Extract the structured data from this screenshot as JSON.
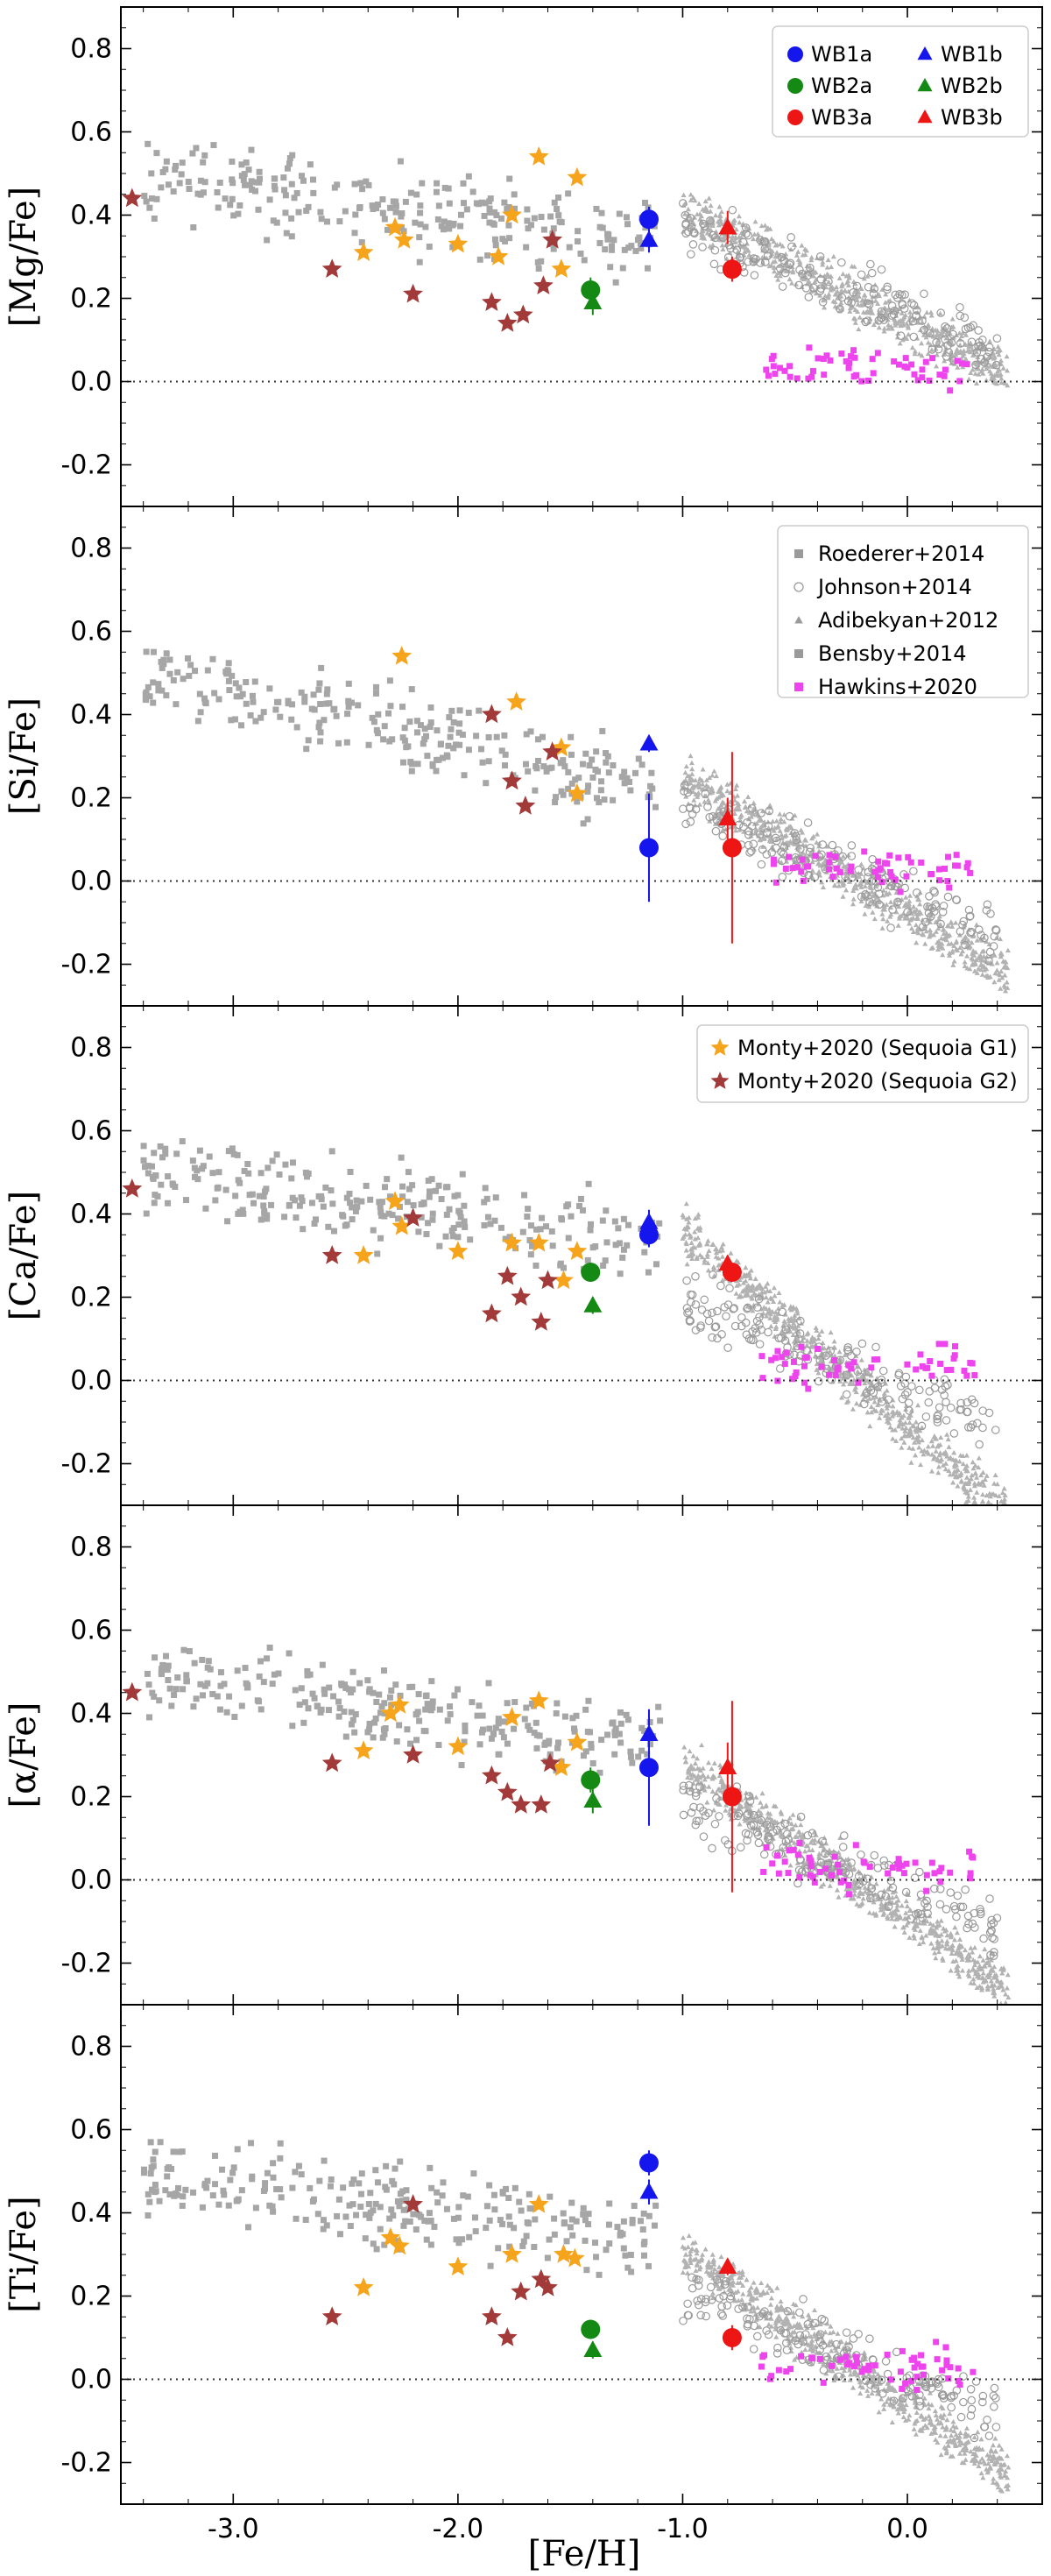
{
  "chart_data": {
    "type": "scatter",
    "xlabel": "[Fe/H]",
    "xlim": [
      -3.5,
      0.6
    ],
    "x_ticks": [
      "-3.0",
      "-2.0",
      "-1.0",
      "0.0"
    ],
    "x_tick_values": [
      -3.0,
      -2.0,
      -1.0,
      0.0
    ],
    "y_ticks": [
      "-0.2",
      "0.0",
      "0.2",
      "0.4",
      "0.6",
      "0.8"
    ],
    "y_tick_values": [
      -0.2,
      0.0,
      0.2,
      0.4,
      0.6,
      0.8
    ],
    "reference_line_y": 0.0,
    "legend_wb": [
      {
        "label": "WB1a",
        "marker": "circle",
        "color": "#1515ee"
      },
      {
        "label": "WB1b",
        "marker": "triangle",
        "color": "#1515ee"
      },
      {
        "label": "WB2a",
        "marker": "circle",
        "color": "#148a14"
      },
      {
        "label": "WB2b",
        "marker": "triangle",
        "color": "#148a14"
      },
      {
        "label": "WB3a",
        "marker": "circle",
        "color": "#ee1515"
      },
      {
        "label": "WB3b",
        "marker": "triangle",
        "color": "#ee1515"
      }
    ],
    "legend_lit": [
      {
        "label": "Roederer+2014",
        "marker": "square",
        "color": "#9a9a9a"
      },
      {
        "label": "Johnson+2014",
        "marker": "open-circle",
        "color": "#9a9a9a"
      },
      {
        "label": "Adibekyan+2012",
        "marker": "small-triangle",
        "color": "#9a9a9a"
      },
      {
        "label": "Bensby+2014",
        "marker": "square",
        "color": "#9a9a9a"
      },
      {
        "label": "Hawkins+2020",
        "marker": "square",
        "color": "#ee44ee"
      }
    ],
    "legend_monty": [
      {
        "label": "Monty+2020 (Sequoia G1)",
        "marker": "star",
        "color": "#f5a41c"
      },
      {
        "label": "Monty+2020 (Sequoia G2)",
        "marker": "star",
        "color": "#a33a3a"
      }
    ],
    "panels": [
      {
        "ylabel": "[Mg/Fe]",
        "ylim": [
          -0.3,
          0.9
        ],
        "legend": "wb",
        "wb": [
          {
            "name": "WB1a",
            "marker": "circle",
            "color": "#1515ee",
            "x": -1.15,
            "y": 0.39,
            "err": 0.03
          },
          {
            "name": "WB1b",
            "marker": "triangle",
            "color": "#1515ee",
            "x": -1.15,
            "y": 0.34,
            "err": 0.03
          },
          {
            "name": "WB2a",
            "marker": "circle",
            "color": "#148a14",
            "x": -1.41,
            "y": 0.22,
            "err": 0.03
          },
          {
            "name": "WB2b",
            "marker": "triangle",
            "color": "#148a14",
            "x": -1.4,
            "y": 0.19,
            "err": 0.03
          },
          {
            "name": "WB3a",
            "marker": "circle",
            "color": "#ee1515",
            "x": -0.78,
            "y": 0.27,
            "err": 0.03
          },
          {
            "name": "WB3b",
            "marker": "triangle",
            "color": "#ee1515",
            "x": -0.8,
            "y": 0.37,
            "err": 0.04
          }
        ],
        "g1": [
          [
            -2.42,
            0.31
          ],
          [
            -2.28,
            0.37
          ],
          [
            -2.24,
            0.34
          ],
          [
            -2.0,
            0.33
          ],
          [
            -1.82,
            0.3
          ],
          [
            -1.76,
            0.4
          ],
          [
            -1.64,
            0.54
          ],
          [
            -1.54,
            0.27
          ],
          [
            -1.47,
            0.49
          ]
        ],
        "g2": [
          [
            -3.45,
            0.44
          ],
          [
            -2.56,
            0.27
          ],
          [
            -2.2,
            0.21
          ],
          [
            -1.85,
            0.19
          ],
          [
            -1.78,
            0.14
          ],
          [
            -1.71,
            0.16
          ],
          [
            -1.62,
            0.23
          ],
          [
            -1.58,
            0.34
          ]
        ]
      },
      {
        "ylabel": "[Si/Fe]",
        "ylim": [
          -0.3,
          0.9
        ],
        "legend": "lit",
        "wb": [
          {
            "name": "WB1a",
            "marker": "circle",
            "color": "#1515ee",
            "x": -1.15,
            "y": 0.08,
            "err": 0.13
          },
          {
            "name": "WB1b",
            "marker": "triangle",
            "color": "#1515ee",
            "x": -1.15,
            "y": 0.33,
            "err": 0.02
          },
          {
            "name": "WB3a",
            "marker": "circle",
            "color": "#ee1515",
            "x": -0.78,
            "y": 0.08,
            "err": 0.23
          },
          {
            "name": "WB3b",
            "marker": "triangle",
            "color": "#ee1515",
            "x": -0.8,
            "y": 0.15,
            "err": 0.05
          }
        ],
        "g1": [
          [
            -2.25,
            0.54
          ],
          [
            -1.74,
            0.43
          ],
          [
            -1.54,
            0.32
          ],
          [
            -1.47,
            0.21
          ]
        ],
        "g2": [
          [
            -1.85,
            0.4
          ],
          [
            -1.76,
            0.24
          ],
          [
            -1.7,
            0.18
          ],
          [
            -1.58,
            0.31
          ]
        ]
      },
      {
        "ylabel": "[Ca/Fe]",
        "ylim": [
          -0.3,
          0.9
        ],
        "legend": "monty",
        "wb": [
          {
            "name": "WB1a",
            "marker": "circle",
            "color": "#1515ee",
            "x": -1.15,
            "y": 0.35,
            "err": 0.03
          },
          {
            "name": "WB1b",
            "marker": "triangle",
            "color": "#1515ee",
            "x": -1.15,
            "y": 0.38,
            "err": 0.03
          },
          {
            "name": "WB2a",
            "marker": "circle",
            "color": "#148a14",
            "x": -1.41,
            "y": 0.26,
            "err": 0.02
          },
          {
            "name": "WB2b",
            "marker": "triangle",
            "color": "#148a14",
            "x": -1.4,
            "y": 0.18,
            "err": 0.02
          },
          {
            "name": "WB3a",
            "marker": "circle",
            "color": "#ee1515",
            "x": -0.78,
            "y": 0.26,
            "err": 0.02
          },
          {
            "name": "WB3b",
            "marker": "triangle",
            "color": "#ee1515",
            "x": -0.8,
            "y": 0.28,
            "err": 0.02
          }
        ],
        "g1": [
          [
            -2.42,
            0.3
          ],
          [
            -2.28,
            0.43
          ],
          [
            -2.25,
            0.37
          ],
          [
            -2.0,
            0.31
          ],
          [
            -1.76,
            0.33
          ],
          [
            -1.64,
            0.33
          ],
          [
            -1.53,
            0.24
          ],
          [
            -1.47,
            0.31
          ]
        ],
        "g2": [
          [
            -3.45,
            0.46
          ],
          [
            -2.56,
            0.3
          ],
          [
            -2.2,
            0.39
          ],
          [
            -1.85,
            0.16
          ],
          [
            -1.78,
            0.25
          ],
          [
            -1.72,
            0.2
          ],
          [
            -1.63,
            0.14
          ],
          [
            -1.6,
            0.24
          ]
        ]
      },
      {
        "ylabel": "[α/Fe]",
        "ylim": [
          -0.3,
          0.9
        ],
        "legend": null,
        "wb": [
          {
            "name": "WB1a",
            "marker": "circle",
            "color": "#1515ee",
            "x": -1.15,
            "y": 0.27,
            "err": 0.14
          },
          {
            "name": "WB1b",
            "marker": "triangle",
            "color": "#1515ee",
            "x": -1.15,
            "y": 0.35,
            "err": 0.05
          },
          {
            "name": "WB2a",
            "marker": "circle",
            "color": "#148a14",
            "x": -1.41,
            "y": 0.24,
            "err": 0.03
          },
          {
            "name": "WB2b",
            "marker": "triangle",
            "color": "#148a14",
            "x": -1.4,
            "y": 0.19,
            "err": 0.03
          },
          {
            "name": "WB3a",
            "marker": "circle",
            "color": "#ee1515",
            "x": -0.78,
            "y": 0.2,
            "err": 0.23
          },
          {
            "name": "WB3b",
            "marker": "triangle",
            "color": "#ee1515",
            "x": -0.8,
            "y": 0.27,
            "err": 0.06
          }
        ],
        "g1": [
          [
            -2.42,
            0.31
          ],
          [
            -2.3,
            0.4
          ],
          [
            -2.26,
            0.42
          ],
          [
            -2.0,
            0.32
          ],
          [
            -1.76,
            0.39
          ],
          [
            -1.64,
            0.43
          ],
          [
            -1.54,
            0.27
          ],
          [
            -1.47,
            0.33
          ]
        ],
        "g2": [
          [
            -3.45,
            0.45
          ],
          [
            -2.56,
            0.28
          ],
          [
            -2.2,
            0.3
          ],
          [
            -1.85,
            0.25
          ],
          [
            -1.78,
            0.21
          ],
          [
            -1.72,
            0.18
          ],
          [
            -1.63,
            0.18
          ],
          [
            -1.59,
            0.28
          ]
        ]
      },
      {
        "ylabel": "[Ti/Fe]",
        "ylim": [
          -0.3,
          0.9
        ],
        "legend": null,
        "wb": [
          {
            "name": "WB1a",
            "marker": "circle",
            "color": "#1515ee",
            "x": -1.15,
            "y": 0.52,
            "err": 0.03
          },
          {
            "name": "WB1b",
            "marker": "triangle",
            "color": "#1515ee",
            "x": -1.15,
            "y": 0.45,
            "err": 0.03
          },
          {
            "name": "WB2a",
            "marker": "circle",
            "color": "#148a14",
            "x": -1.41,
            "y": 0.12,
            "err": 0.02
          },
          {
            "name": "WB2b",
            "marker": "triangle",
            "color": "#148a14",
            "x": -1.4,
            "y": 0.07,
            "err": 0.02
          },
          {
            "name": "WB3a",
            "marker": "circle",
            "color": "#ee1515",
            "x": -0.78,
            "y": 0.1,
            "err": 0.03
          },
          {
            "name": "WB3b",
            "marker": "triangle",
            "color": "#ee1515",
            "x": -0.8,
            "y": 0.27,
            "err": 0.02
          }
        ],
        "g1": [
          [
            -2.42,
            0.22
          ],
          [
            -2.3,
            0.34
          ],
          [
            -2.26,
            0.32
          ],
          [
            -2.0,
            0.27
          ],
          [
            -1.76,
            0.3
          ],
          [
            -1.64,
            0.42
          ],
          [
            -1.53,
            0.3
          ],
          [
            -1.48,
            0.29
          ]
        ],
        "g2": [
          [
            -2.56,
            0.15
          ],
          [
            -2.2,
            0.42
          ],
          [
            -1.85,
            0.15
          ],
          [
            -1.78,
            0.1
          ],
          [
            -1.72,
            0.21
          ],
          [
            -1.63,
            0.24
          ],
          [
            -1.6,
            0.22
          ]
        ]
      }
    ]
  }
}
